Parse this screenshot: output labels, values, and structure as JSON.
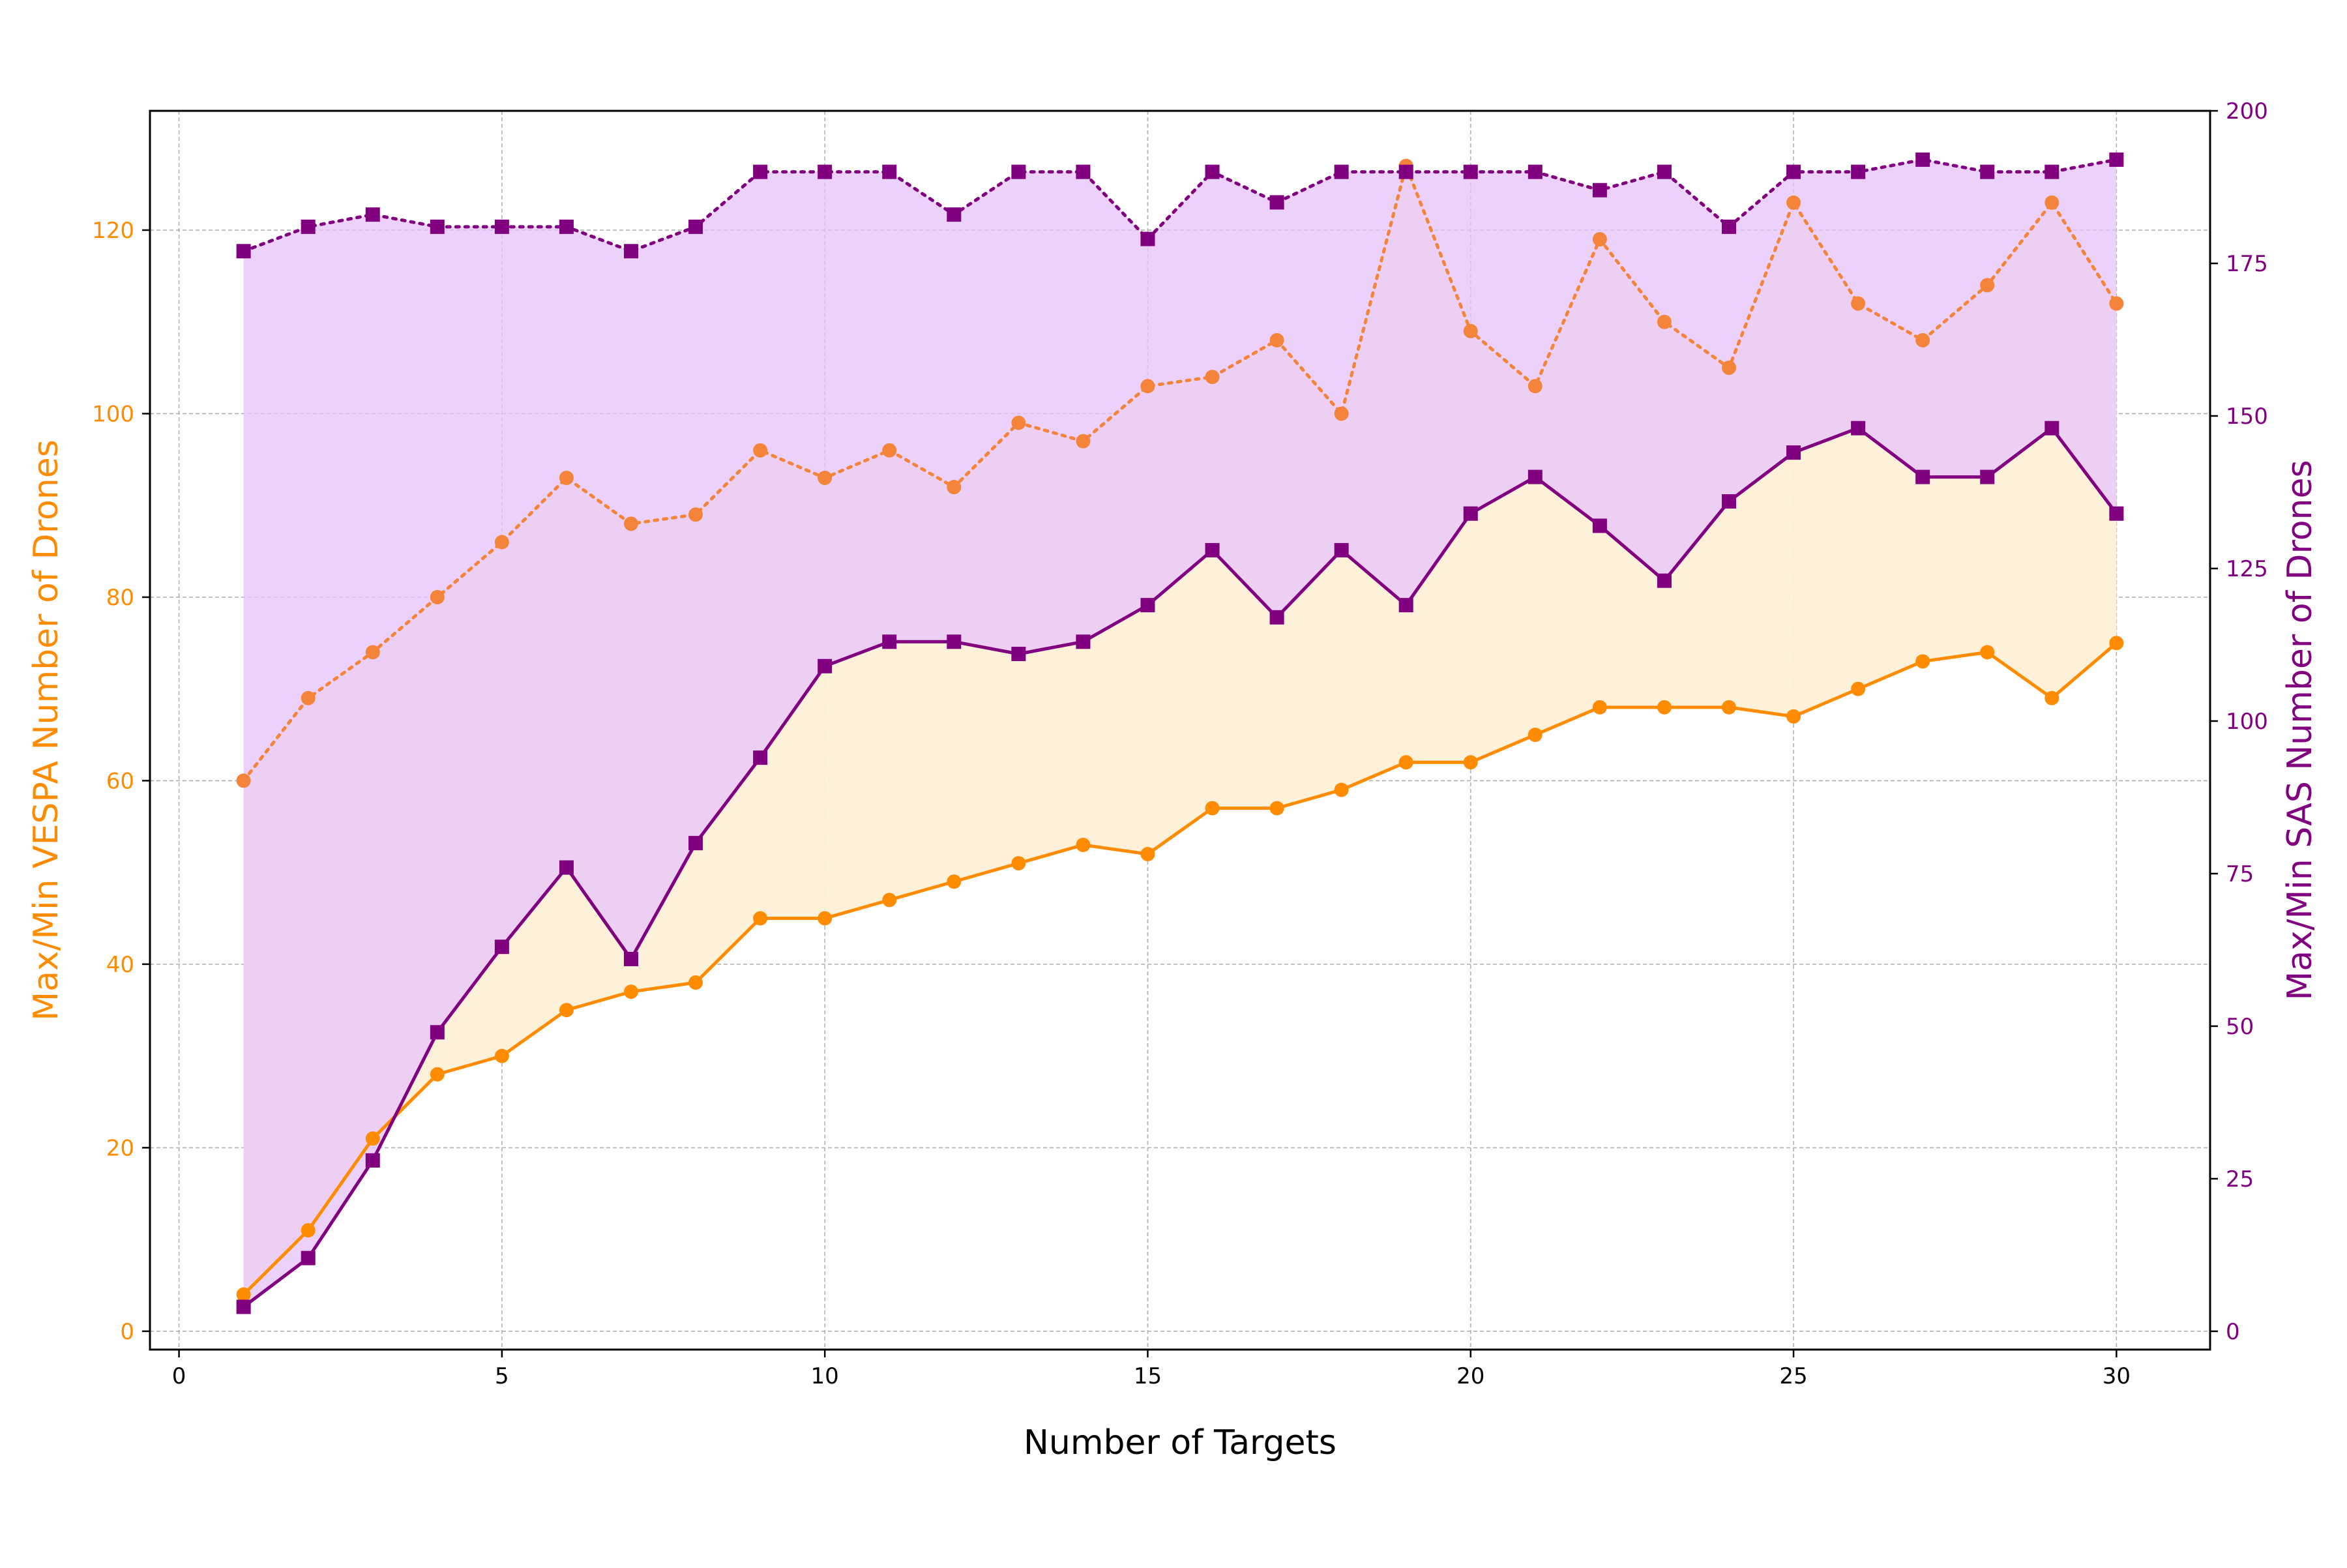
{
  "chart_data": {
    "type": "line",
    "title": "",
    "xlabel": "Number of Targets",
    "ylabel_left": "Max/Min VESPA Number of Drones",
    "ylabel_right": "Max/Min SAS Number of Drones",
    "xlim": [
      -0.45,
      31.45
    ],
    "ylim_left": [
      -2,
      133
    ],
    "ylim_right": [
      -3,
      200
    ],
    "xticks": [
      0,
      5,
      10,
      15,
      20,
      25,
      30
    ],
    "yticks_left": [
      0,
      20,
      40,
      60,
      80,
      100,
      120
    ],
    "yticks_right": [
      0,
      25,
      50,
      75,
      100,
      125,
      150,
      175,
      200
    ],
    "grid": true,
    "x": [
      1,
      2,
      3,
      4,
      5,
      6,
      7,
      8,
      9,
      10,
      11,
      12,
      13,
      14,
      15,
      16,
      17,
      18,
      19,
      20,
      21,
      22,
      23,
      24,
      25,
      26,
      27,
      28,
      29,
      30
    ],
    "series": [
      {
        "key": "vespa_max",
        "axis": "left",
        "style": "dotted",
        "marker": "circle",
        "values": [
          60,
          69,
          74,
          80,
          86,
          93,
          88,
          89,
          96,
          93,
          96,
          92,
          99,
          97,
          103,
          104,
          108,
          100,
          127,
          109,
          103,
          119,
          110,
          105,
          123,
          112,
          108,
          114,
          123,
          112
        ]
      },
      {
        "key": "vespa_min",
        "axis": "left",
        "style": "solid",
        "marker": "circle",
        "values": [
          4,
          11,
          21,
          28,
          30,
          35,
          37,
          38,
          45,
          45,
          47,
          49,
          51,
          53,
          52,
          57,
          57,
          59,
          62,
          62,
          65,
          68,
          68,
          68,
          67,
          70,
          73,
          74,
          69,
          75
        ]
      },
      {
        "key": "sas_max",
        "axis": "right",
        "style": "dotted",
        "marker": "square",
        "values": [
          177,
          181,
          183,
          181,
          181,
          181,
          177,
          181,
          190,
          190,
          190,
          183,
          190,
          190,
          179,
          190,
          185,
          190,
          190,
          190,
          190,
          187,
          190,
          181,
          190,
          190,
          192,
          190,
          190,
          192
        ]
      },
      {
        "key": "sas_min",
        "axis": "right",
        "style": "solid",
        "marker": "square",
        "values": [
          4,
          12,
          28,
          49,
          63,
          76,
          61,
          80,
          94,
          109,
          113,
          113,
          111,
          113,
          119,
          128,
          117,
          128,
          119,
          134,
          140,
          132,
          123,
          136,
          144,
          148,
          140,
          140,
          148,
          134
        ]
      }
    ],
    "colors": {
      "vespa_line": "#ff8c00",
      "vespa_max_line": "#f4843a",
      "vespa_fill": "#fdf0d8",
      "sas_line": "#800080",
      "sas_fill": "#e6c3fa",
      "grid": "#b0b0b0",
      "axis_text_left": "#ff8c00",
      "axis_text_right": "#800080",
      "axis_text_x": "#000000"
    }
  }
}
